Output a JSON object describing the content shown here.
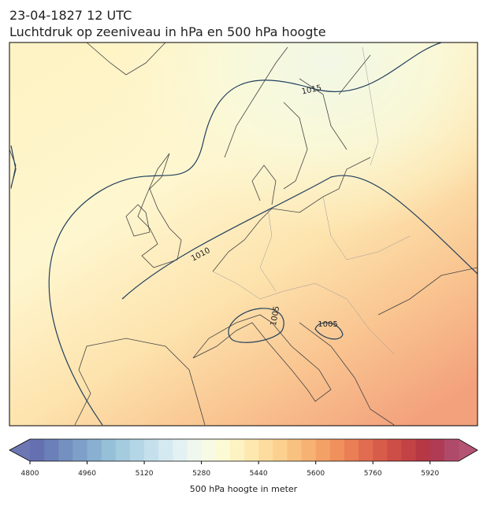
{
  "header": {
    "title": "23-04-1827 12 UTC",
    "subtitle": "Luchtdruk op zeeniveau in hPa en 500 hPa hoogte"
  },
  "map": {
    "isobar_labels": [
      1015,
      1010,
      1005,
      1005
    ]
  },
  "colorbar": {
    "label": "500 hPa hoogte in meter",
    "lim": [
      4800,
      6000
    ],
    "ticks": [
      4800,
      4960,
      5120,
      5280,
      5440,
      5600,
      5760,
      5920
    ],
    "colors": [
      "#6570b0",
      "#6b7fb8",
      "#7490c0",
      "#7ea0c8",
      "#89b0d0",
      "#96bfd8",
      "#a5cbdf",
      "#b5d6e6",
      "#c5e0ec",
      "#d5e9f1",
      "#e3f1f3",
      "#eff7ef",
      "#f7fbe4",
      "#fbfad5",
      "#fdf3c2",
      "#fde9b0",
      "#fddd9f",
      "#fcd08f",
      "#f9c180",
      "#f7b273",
      "#f4a167",
      "#f0905d",
      "#ea7e55",
      "#e26c4f",
      "#d85c4a",
      "#cd4d47",
      "#c24246",
      "#b63845",
      "#b03b55",
      "#b04a6b"
    ]
  }
}
